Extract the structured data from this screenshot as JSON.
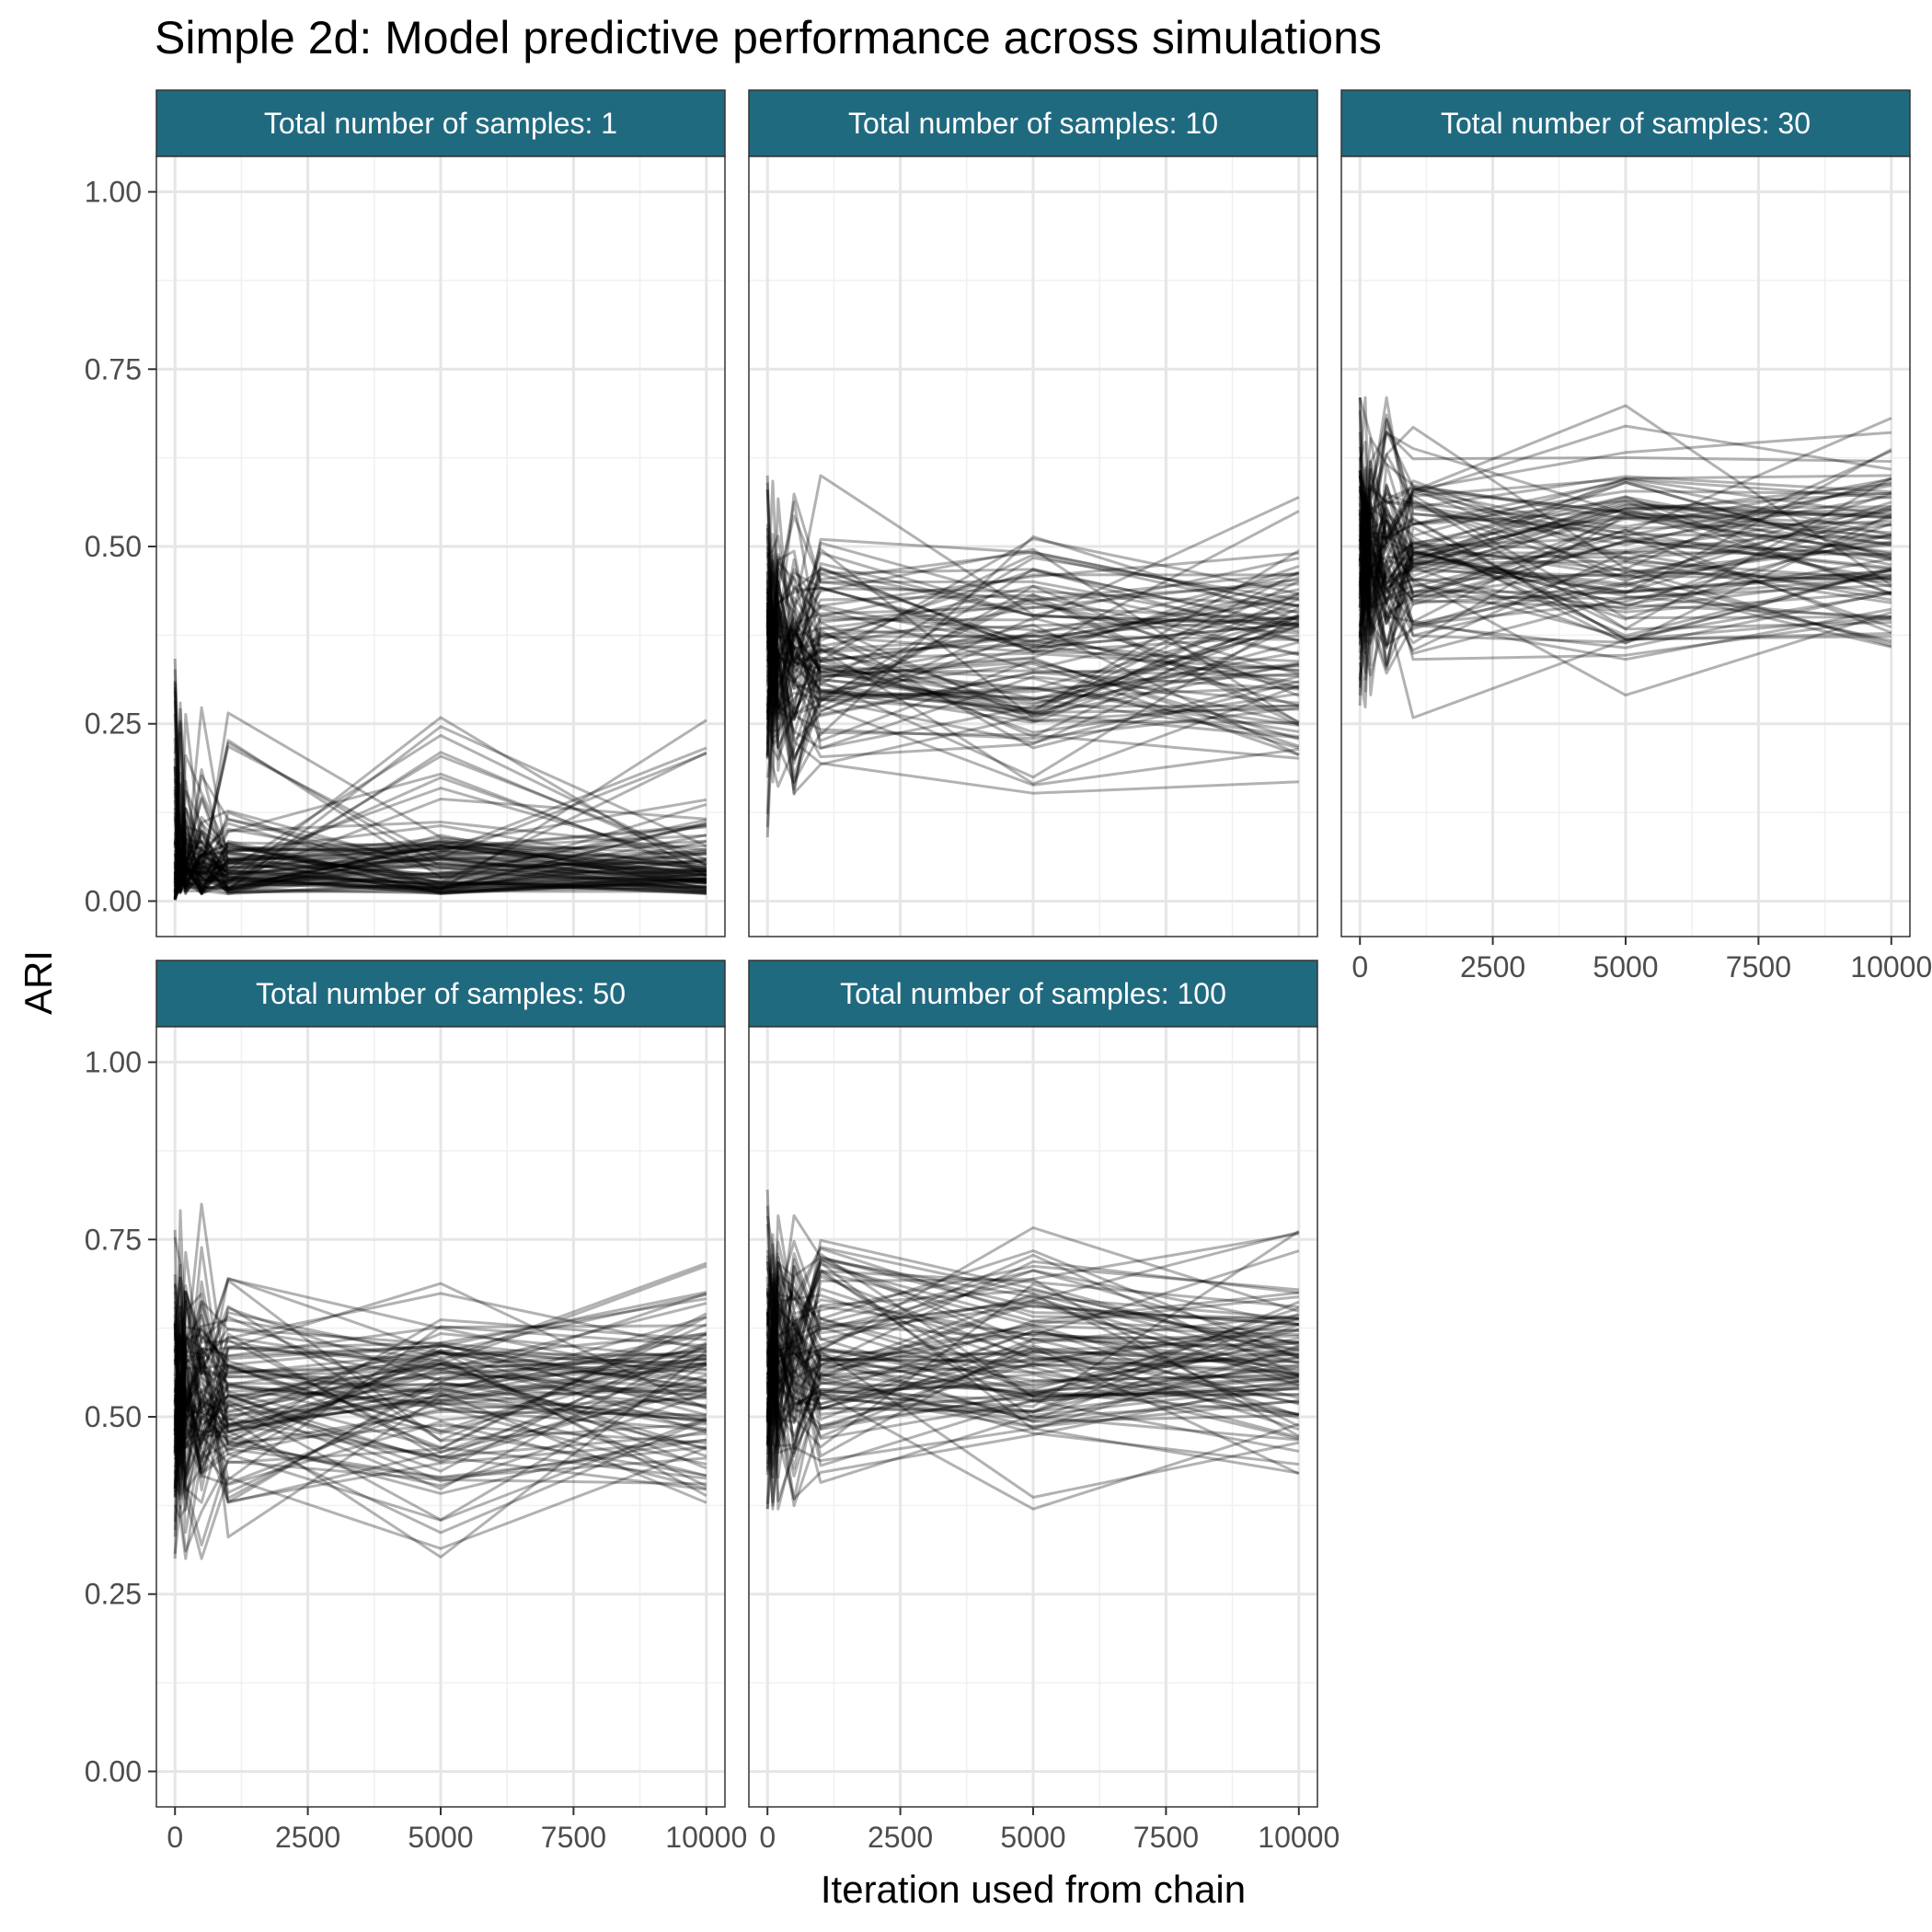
{
  "chart_data": {
    "type": "line",
    "title": "Simple 2d: Model predictive performance across simulations",
    "xlabel": "Iteration used from chain",
    "ylabel": "ARI",
    "xlim": [
      -350,
      10350
    ],
    "ylim": [
      -0.05,
      1.05
    ],
    "x_ticks": [
      "0",
      "2500",
      "5000",
      "7500",
      "10000"
    ],
    "y_ticks": [
      "0.00",
      "0.25",
      "0.50",
      "0.75",
      "1.00"
    ],
    "x_tick_values": [
      0,
      2500,
      5000,
      7500,
      10000
    ],
    "y_tick_values": [
      0,
      0.25,
      0.5,
      0.75,
      1.0
    ],
    "x_iterations": [
      0,
      100,
      200,
      500,
      1000,
      5000,
      10000
    ],
    "grid": true,
    "line_color": "#000000",
    "line_alpha": 0.3,
    "strip_color": "#206a80",
    "panels": [
      {
        "label": "Total number of samples: 1",
        "n_sims": 100,
        "start_range": [
          0.0,
          0.35
        ],
        "mid_range": [
          0.0,
          0.28
        ],
        "end_range": [
          0.01,
          0.32
        ],
        "typical_ari": 0.05
      },
      {
        "label": "Total number of samples: 10",
        "n_sims": 100,
        "start_range": [
          0.09,
          0.59
        ],
        "mid_range": [
          0.14,
          0.61
        ],
        "end_range": [
          0.14,
          0.6
        ],
        "typical_ari": 0.35
      },
      {
        "label": "Total number of samples: 30",
        "n_sims": 100,
        "start_range": [
          0.22,
          0.68
        ],
        "mid_range": [
          0.27,
          0.68
        ],
        "end_range": [
          0.34,
          0.71
        ],
        "typical_ari": 0.47
      },
      {
        "label": "Total number of samples: 50",
        "n_sims": 100,
        "start_range": [
          0.3,
          0.74
        ],
        "mid_range": [
          0.34,
          0.75
        ],
        "end_range": [
          0.4,
          0.8
        ],
        "typical_ari": 0.53
      },
      {
        "label": "Total number of samples: 100",
        "n_sims": 100,
        "start_range": [
          0.37,
          0.83
        ],
        "mid_range": [
          0.39,
          0.83
        ],
        "end_range": [
          0.43,
          0.83
        ],
        "typical_ari": 0.58
      }
    ]
  }
}
